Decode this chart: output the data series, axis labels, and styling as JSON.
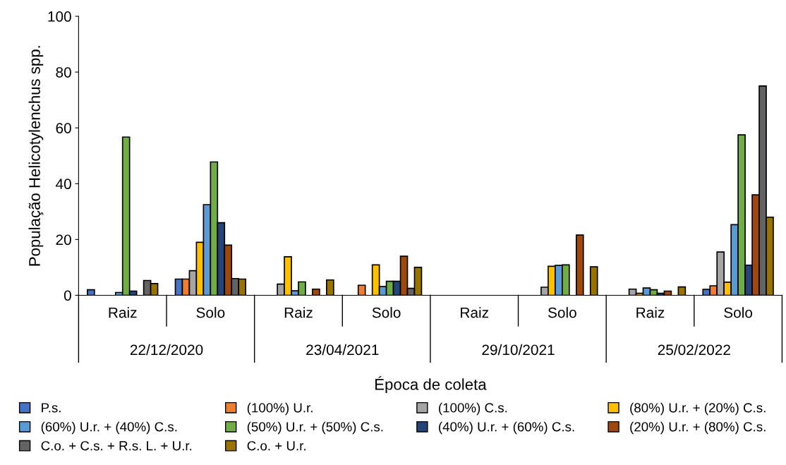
{
  "chart_data": {
    "type": "bar",
    "xlabel": "Época de coleta",
    "ylabel": "População Helicotylenchus spp.",
    "categories": [
      "Raiz",
      "Solo",
      "Raiz",
      "Solo",
      "Raiz",
      "Solo",
      "Raiz",
      "Solo"
    ],
    "annotations": [
      "22/12/2020",
      "23/04/2021",
      "29/10/2021",
      "25/02/2022"
    ],
    "ylim": [
      0,
      100
    ],
    "yticks": [
      0,
      20,
      40,
      60,
      80,
      100
    ],
    "grid": false,
    "legend": "bottom",
    "series": [
      {
        "name": "P.s.",
        "color": "#4472c4",
        "values": [
          2,
          5.8,
          null,
          null,
          null,
          null,
          null,
          2.1
        ]
      },
      {
        "name": "(100%) U.r.",
        "color": "#ed7d31",
        "values": [
          null,
          5.8,
          null,
          3.6,
          null,
          null,
          null,
          3.4
        ]
      },
      {
        "name": "(100%) C.s.",
        "color": "#a5a5a5",
        "values": [
          null,
          8.8,
          4,
          null,
          null,
          2.9,
          2.2,
          15.5
        ]
      },
      {
        "name": "(80%) U.r. + (20%) C.s.",
        "color": "#ffc000",
        "values": [
          null,
          19,
          13.8,
          10.9,
          null,
          10.4,
          0.7,
          4.7
        ]
      },
      {
        "name": "(60%) U.r. + (40%) C.s.",
        "color": "#5b9bd5",
        "values": [
          1,
          32.5,
          1.6,
          3.1,
          null,
          10.7,
          2.6,
          25.3
        ]
      },
      {
        "name": "(50%) U.r. + (50%) C.s.",
        "color": "#70ad47",
        "values": [
          56.7,
          47.8,
          4.8,
          5,
          null,
          10.9,
          2,
          57.5
        ]
      },
      {
        "name": "(40%) U.r. + (60%) C.s.",
        "color": "#264478",
        "values": [
          1.5,
          26,
          null,
          5,
          null,
          null,
          0.7,
          10.8
        ]
      },
      {
        "name": "(20%) U.r. + (80%) C.s.",
        "color": "#9e480e",
        "values": [
          null,
          18,
          2.2,
          14,
          null,
          21.6,
          1.5,
          36
        ]
      },
      {
        "name": "C.o. + C.s. + R.s. L. + U.r.",
        "color": "#636363",
        "values": [
          5.3,
          6,
          null,
          2.5,
          null,
          null,
          null,
          75
        ]
      },
      {
        "name": "C.o. + U.r.",
        "color": "#997300",
        "values": [
          4.2,
          5.8,
          5.5,
          10,
          null,
          10.2,
          3,
          28
        ]
      }
    ]
  }
}
